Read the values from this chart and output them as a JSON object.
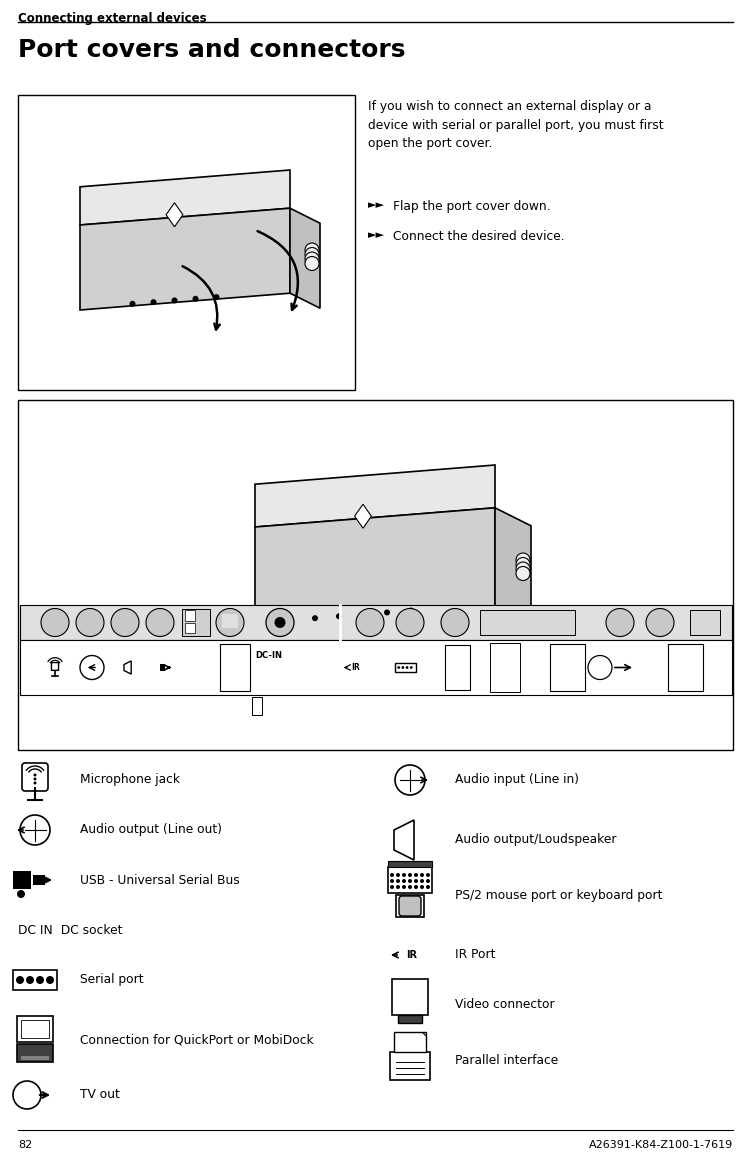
{
  "header_text": "Connecting external devices",
  "page_number": "82",
  "doc_number": "A26391-K84-Z100-1-7619",
  "title": "Port covers and connectors",
  "intro_text": "If you wish to connect an external display or a\ndevice with serial or parallel port, you must first\nopen the port cover.",
  "bullet1": "Flap the port cover down.",
  "bullet2": "Connect the desired device.",
  "dc_in_label": "DC-IN",
  "bg_color": "#ffffff",
  "text_color": "#000000",
  "left_icons": [
    {
      "type": "mic",
      "label": "Microphone jack"
    },
    {
      "type": "lineout",
      "label": "Audio output (Line out)"
    },
    {
      "type": "usb",
      "label": "USB - Universal Serial Bus"
    },
    {
      "type": "dcin",
      "label": "DC IN  DC socket"
    },
    {
      "type": "serial",
      "label": "Serial port"
    },
    {
      "type": "dock",
      "label": "Connection for QuickPort or MobiDock"
    },
    {
      "type": "tvout",
      "label": "TV out"
    }
  ],
  "right_icons": [
    {
      "type": "linein",
      "label": "Audio input (Line in)"
    },
    {
      "type": "speaker",
      "label": "Audio output/Loudspeaker"
    },
    {
      "type": "ps2",
      "label": "PS/2 mouse port or keyboard port"
    },
    {
      "type": "ir",
      "label": "IR Port"
    },
    {
      "type": "video",
      "label": "Video connector"
    },
    {
      "type": "parallel",
      "label": "Parallel interface"
    }
  ]
}
